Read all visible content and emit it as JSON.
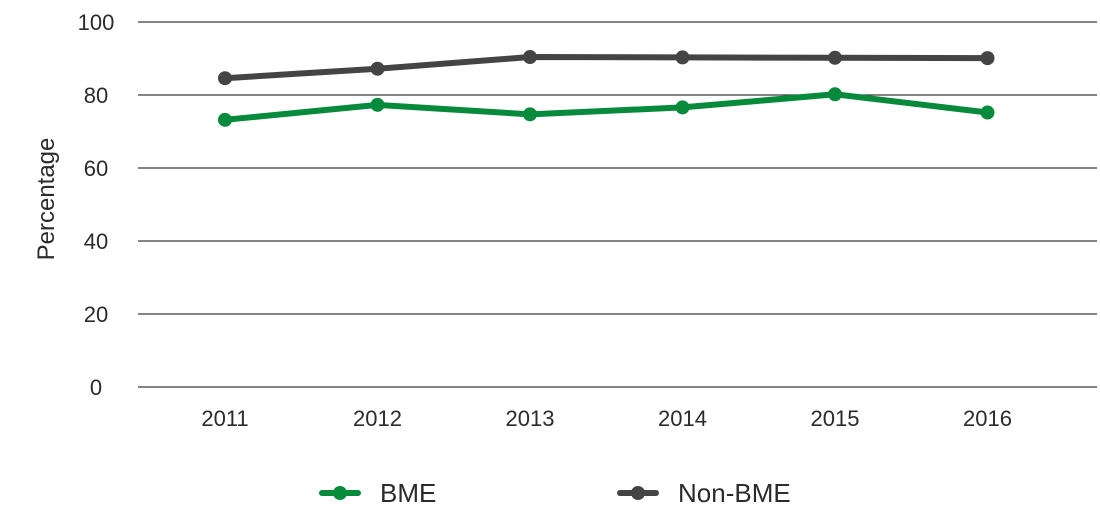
{
  "chart_data": {
    "type": "line",
    "title": "",
    "xlabel": "",
    "ylabel": "Percentage",
    "categories": [
      "2011",
      "2012",
      "2013",
      "2014",
      "2015",
      "2016"
    ],
    "ylim": [
      0,
      100
    ],
    "yticks": [
      0,
      20,
      40,
      60,
      80,
      100
    ],
    "grid": true,
    "legend_position": "bottom",
    "series": [
      {
        "name": "BME",
        "color": "#078a3c",
        "values": [
          73.2,
          77.3,
          74.7,
          76.6,
          80.2,
          75.2
        ]
      },
      {
        "name": "Non-BME",
        "color": "#444444",
        "values": [
          84.6,
          87.2,
          90.4,
          90.3,
          90.2,
          90.1
        ]
      }
    ]
  }
}
